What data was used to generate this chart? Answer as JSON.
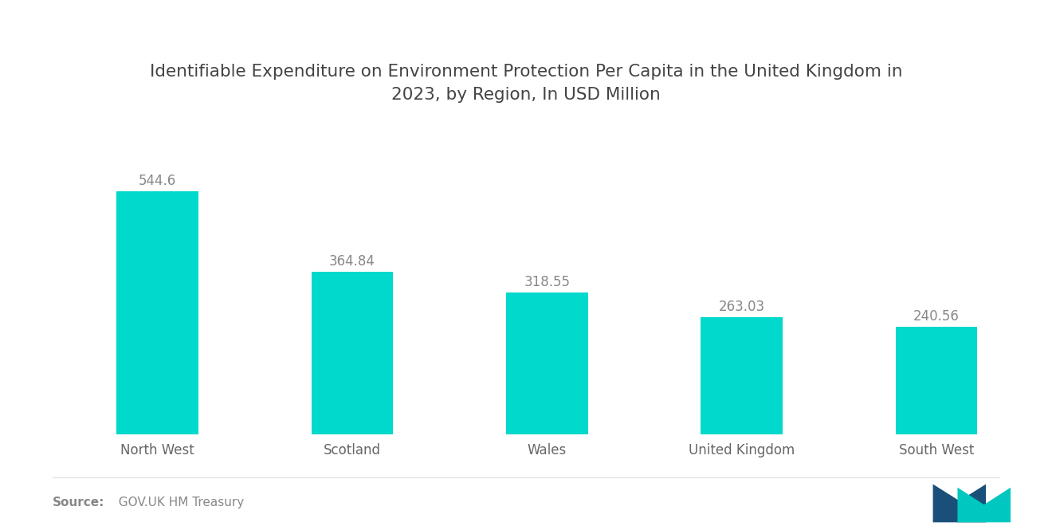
{
  "title": "Identifiable Expenditure on Environment Protection Per Capita in the United Kingdom in\n2023, by Region, In USD Million",
  "categories": [
    "North West",
    "Scotland",
    "Wales",
    "United Kingdom",
    "South West"
  ],
  "values": [
    544.6,
    364.84,
    318.55,
    263.03,
    240.56
  ],
  "bar_color": "#00D9CC",
  "value_color": "#888888",
  "title_color": "#444444",
  "label_color": "#666666",
  "source_bold": "Source:",
  "source_text": "  GOV.UK HM Treasury",
  "background_color": "#ffffff",
  "title_fontsize": 15.5,
  "label_fontsize": 12,
  "value_fontsize": 12,
  "source_fontsize": 11,
  "ylim": [
    0,
    640
  ],
  "bar_width": 0.42,
  "logo_blue": "#1a4f7a",
  "logo_teal": "#00C8C0"
}
